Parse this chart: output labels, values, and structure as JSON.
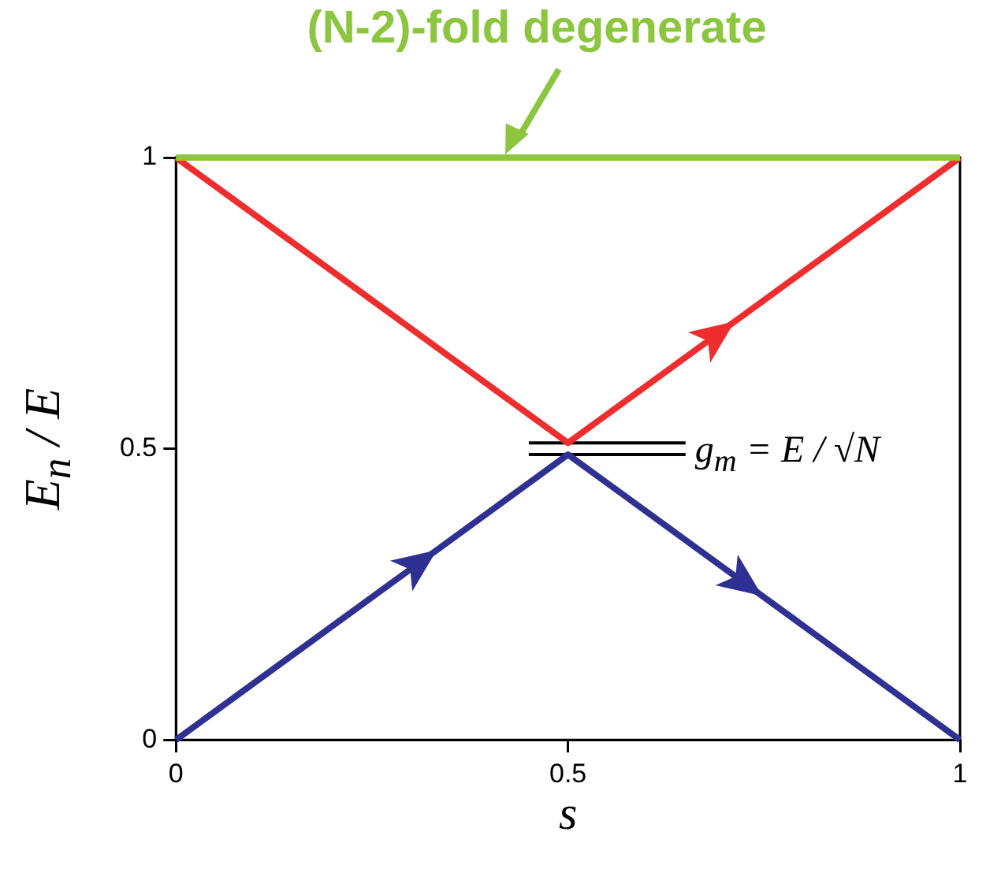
{
  "chart_data": {
    "type": "line",
    "xlabel": "s",
    "ylabel": "E$_{n}$ / E",
    "xlim": [
      0,
      1
    ],
    "xticks": [
      0,
      0.5,
      1
    ],
    "ylim": [
      0,
      1
    ],
    "yticks": [
      0,
      0.5,
      1
    ],
    "grid": false,
    "legend": false,
    "marker": "none",
    "line_style": "solid",
    "series": [
      {
        "color": "#8cc63f",
        "x": [
          0,
          1
        ],
        "values": [
          1,
          1
        ]
      },
      {
        "color": "#ee2e2e",
        "x": [
          0,
          0.5,
          1
        ],
        "values": [
          1,
          0.51,
          1
        ]
      },
      {
        "color": "#2e3192",
        "x": [
          0,
          0.5,
          1
        ],
        "values": [
          0,
          0.49,
          0
        ]
      },
      {
        "color": "#000000",
        "x": [
          0.45,
          0.65
        ],
        "values": [
          0.51,
          0.51
        ]
      },
      {
        "color": "#000000",
        "x": [
          0.45,
          0.65
        ],
        "values": [
          0.49,
          0.49
        ]
      }
    ],
    "annotations": [
      {
        "text": "(N-2)-fold degenerate",
        "x": 0.42,
        "y": 1
      },
      {
        "text": "g$_{m}$ = E / √N",
        "x": 0.65,
        "y": 0.51
      }
    ]
  }
}
